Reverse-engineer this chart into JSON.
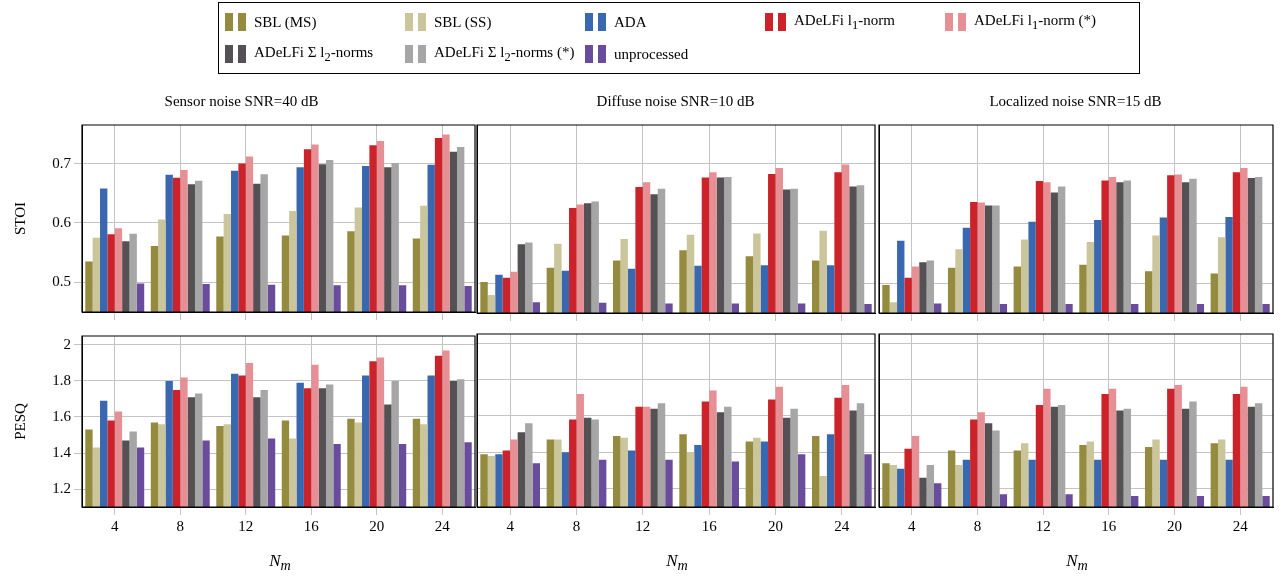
{
  "chart_data": [
    {
      "type": "bar",
      "title": "Sensor noise SNR=40 dB",
      "ylabel": "STOI",
      "categories": [
        "4",
        "8",
        "12",
        "16",
        "20",
        "24"
      ],
      "ylim": [
        0.45,
        0.765
      ],
      "yticks": [
        0.5,
        0.6,
        0.7
      ],
      "grid": true,
      "tick_labels": "y",
      "legend": "top",
      "series": [
        {
          "name": "SBL (MS)",
          "color": "#958b3e",
          "values": [
            0.535,
            0.561,
            0.577,
            0.579,
            0.586,
            0.574
          ]
        },
        {
          "name": "SBL (SS)",
          "color": "#cbc59c",
          "values": [
            0.575,
            0.606,
            0.615,
            0.62,
            0.626,
            0.629
          ]
        },
        {
          "name": "ADA",
          "color": "#3a68b0",
          "values": [
            0.658,
            0.681,
            0.688,
            0.694,
            0.696,
            0.698
          ]
        },
        {
          "name": "ADeLFi l$_{1}$-norm",
          "color": "#cc2229",
          "values": [
            0.581,
            0.676,
            0.7,
            0.724,
            0.731,
            0.743
          ]
        },
        {
          "name": "ADeLFi l$_{1}$-norm (*)",
          "color": "#e69095",
          "values": [
            0.591,
            0.689,
            0.712,
            0.732,
            0.738,
            0.749
          ]
        },
        {
          "name": "ADeLFi Σ l$_{2}$-norms",
          "color": "#545154",
          "values": [
            0.569,
            0.665,
            0.666,
            0.699,
            0.694,
            0.72
          ]
        },
        {
          "name": "ADeLFi Σ l$_{2}$-norms (*)",
          "color": "#a6a6a6",
          "values": [
            0.582,
            0.671,
            0.682,
            0.706,
            0.701,
            0.728
          ]
        },
        {
          "name": "unprocessed",
          "color": "#6a4c9c",
          "values": [
            0.498,
            0.497,
            0.496,
            0.495,
            0.495,
            0.494
          ]
        }
      ]
    },
    {
      "type": "bar",
      "title": "Diffuse noise SNR=10 dB",
      "categories": [
        "4",
        "8",
        "12",
        "16",
        "20",
        "24"
      ],
      "ylim": [
        0.45,
        0.765
      ],
      "yticks": [
        0.5,
        0.6,
        0.7
      ],
      "grid": true,
      "tick_labels": false,
      "series": [
        {
          "color": "#958b3e",
          "values": [
            0.502,
            0.526,
            0.538,
            0.555,
            0.545,
            0.538
          ]
        },
        {
          "color": "#cbc59c",
          "values": [
            0.48,
            0.566,
            0.574,
            0.581,
            0.583,
            0.588
          ]
        },
        {
          "color": "#3a68b0",
          "values": [
            0.514,
            0.521,
            0.524,
            0.529,
            0.53,
            0.53
          ]
        },
        {
          "color": "#cc2229",
          "values": [
            0.509,
            0.626,
            0.661,
            0.677,
            0.683,
            0.686
          ]
        },
        {
          "color": "#e69095",
          "values": [
            0.519,
            0.632,
            0.669,
            0.686,
            0.693,
            0.699
          ]
        },
        {
          "color": "#545154",
          "values": [
            0.565,
            0.634,
            0.649,
            0.677,
            0.657,
            0.662
          ]
        },
        {
          "color": "#a6a6a6",
          "values": [
            0.568,
            0.637,
            0.658,
            0.678,
            0.658,
            0.664
          ]
        },
        {
          "color": "#6a4c9c",
          "values": [
            0.468,
            0.467,
            0.466,
            0.466,
            0.466,
            0.465
          ]
        }
      ]
    },
    {
      "type": "bar",
      "title": "Localized noise SNR=15 dB",
      "categories": [
        "4",
        "8",
        "12",
        "16",
        "20",
        "24"
      ],
      "ylim": [
        0.45,
        0.765
      ],
      "yticks": [
        0.5,
        0.6,
        0.7
      ],
      "grid": true,
      "tick_labels": false,
      "series": [
        {
          "color": "#958b3e",
          "values": [
            0.497,
            0.526,
            0.528,
            0.531,
            0.52,
            0.516
          ]
        },
        {
          "color": "#cbc59c",
          "values": [
            0.468,
            0.557,
            0.573,
            0.569,
            0.58,
            0.577
          ]
        },
        {
          "color": "#3a68b0",
          "values": [
            0.571,
            0.593,
            0.603,
            0.606,
            0.61,
            0.611
          ]
        },
        {
          "color": "#cc2229",
          "values": [
            0.509,
            0.636,
            0.671,
            0.672,
            0.681,
            0.686
          ]
        },
        {
          "color": "#e69095",
          "values": [
            0.528,
            0.635,
            0.669,
            0.678,
            0.682,
            0.693
          ]
        },
        {
          "color": "#545154",
          "values": [
            0.535,
            0.63,
            0.652,
            0.669,
            0.669,
            0.676
          ]
        },
        {
          "color": "#a6a6a6",
          "values": [
            0.538,
            0.63,
            0.662,
            0.672,
            0.675,
            0.678
          ]
        },
        {
          "color": "#6a4c9c",
          "values": [
            0.466,
            0.465,
            0.465,
            0.465,
            0.465,
            0.465
          ]
        }
      ]
    },
    {
      "type": "bar",
      "ylabel": "PESQ",
      "xlabel": "N$_{m}$",
      "categories": [
        "4",
        "8",
        "12",
        "16",
        "20",
        "24"
      ],
      "ylim": [
        1.1,
        2.05
      ],
      "yticks": [
        1.2,
        1.4,
        1.6,
        1.8,
        2
      ],
      "grid": true,
      "series": [
        {
          "color": "#958b3e",
          "values": [
            1.53,
            1.57,
            1.55,
            1.58,
            1.59,
            1.59
          ]
        },
        {
          "color": "#cbc59c",
          "values": [
            1.43,
            1.56,
            1.56,
            1.48,
            1.57,
            1.56
          ]
        },
        {
          "color": "#3a68b0",
          "values": [
            1.69,
            1.8,
            1.84,
            1.79,
            1.83,
            1.83
          ]
        },
        {
          "color": "#cc2229",
          "values": [
            1.58,
            1.75,
            1.83,
            1.76,
            1.91,
            1.94
          ]
        },
        {
          "color": "#e69095",
          "values": [
            1.63,
            1.82,
            1.9,
            1.89,
            1.93,
            1.97
          ]
        },
        {
          "color": "#545154",
          "values": [
            1.47,
            1.71,
            1.71,
            1.76,
            1.67,
            1.8
          ]
        },
        {
          "color": "#a6a6a6",
          "values": [
            1.52,
            1.73,
            1.75,
            1.78,
            1.8,
            1.81
          ]
        },
        {
          "color": "#6a4c9c",
          "values": [
            1.43,
            1.47,
            1.48,
            1.45,
            1.45,
            1.46
          ]
        }
      ]
    },
    {
      "type": "bar",
      "xlabel": "N$_{m}$",
      "categories": [
        "4",
        "8",
        "12",
        "16",
        "20",
        "24"
      ],
      "ylim": [
        1.1,
        2.05
      ],
      "yticks": [
        1.2,
        1.4,
        1.6,
        1.8,
        2
      ],
      "grid": true,
      "tick_labels": "x",
      "series": [
        {
          "color": "#958b3e",
          "values": [
            1.39,
            1.47,
            1.49,
            1.5,
            1.46,
            1.49
          ]
        },
        {
          "color": "#cbc59c",
          "values": [
            1.38,
            1.47,
            1.48,
            1.4,
            1.48,
            1.27
          ]
        },
        {
          "color": "#3a68b0",
          "values": [
            1.39,
            1.4,
            1.41,
            1.44,
            1.46,
            1.5
          ]
        },
        {
          "color": "#cc2229",
          "values": [
            1.41,
            1.58,
            1.65,
            1.68,
            1.69,
            1.7
          ]
        },
        {
          "color": "#e69095",
          "values": [
            1.47,
            1.72,
            1.65,
            1.74,
            1.76,
            1.77
          ]
        },
        {
          "color": "#545154",
          "values": [
            1.51,
            1.59,
            1.64,
            1.62,
            1.59,
            1.63
          ]
        },
        {
          "color": "#a6a6a6",
          "values": [
            1.56,
            1.58,
            1.67,
            1.65,
            1.64,
            1.67
          ]
        },
        {
          "color": "#6a4c9c",
          "values": [
            1.34,
            1.36,
            1.36,
            1.35,
            1.39,
            1.39
          ]
        }
      ]
    },
    {
      "type": "bar",
      "xlabel": "N$_{m}$",
      "categories": [
        "4",
        "8",
        "12",
        "16",
        "20",
        "24"
      ],
      "ylim": [
        1.1,
        2.05
      ],
      "yticks": [
        1.2,
        1.4,
        1.6,
        1.8,
        2
      ],
      "grid": true,
      "tick_labels": "x",
      "series": [
        {
          "color": "#958b3e",
          "values": [
            1.34,
            1.41,
            1.41,
            1.44,
            1.43,
            1.45
          ]
        },
        {
          "color": "#cbc59c",
          "values": [
            1.33,
            1.33,
            1.45,
            1.46,
            1.47,
            1.47
          ]
        },
        {
          "color": "#3a68b0",
          "values": [
            1.31,
            1.36,
            1.36,
            1.36,
            1.36,
            1.36
          ]
        },
        {
          "color": "#cc2229",
          "values": [
            1.42,
            1.58,
            1.66,
            1.72,
            1.75,
            1.72
          ]
        },
        {
          "color": "#e69095",
          "values": [
            1.49,
            1.62,
            1.75,
            1.75,
            1.77,
            1.76
          ]
        },
        {
          "color": "#545154",
          "values": [
            1.26,
            1.56,
            1.65,
            1.63,
            1.64,
            1.65
          ]
        },
        {
          "color": "#a6a6a6",
          "values": [
            1.33,
            1.52,
            1.66,
            1.64,
            1.68,
            1.67
          ]
        },
        {
          "color": "#6a4c9c",
          "values": [
            1.23,
            1.17,
            1.17,
            1.16,
            1.16,
            1.16
          ]
        }
      ]
    }
  ]
}
